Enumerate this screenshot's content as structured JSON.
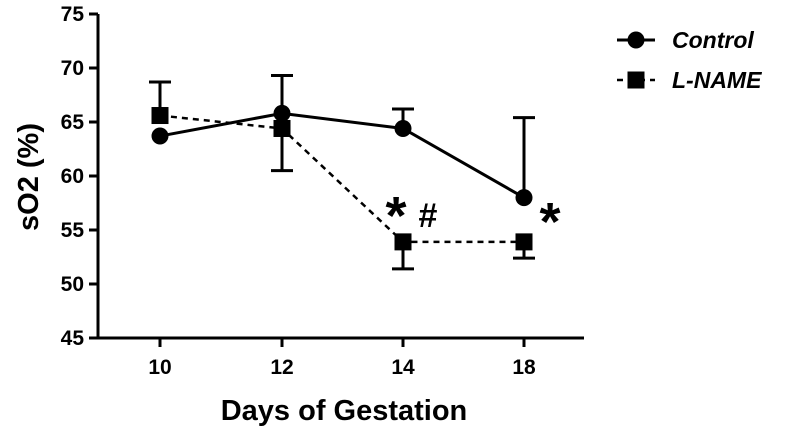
{
  "chart_data": {
    "type": "line",
    "xlabel": "Days of Gestation",
    "ylabel": "sO2 (%)",
    "categories": [
      "10",
      "12",
      "14",
      "18"
    ],
    "ylim": [
      45,
      75
    ],
    "yticks": [
      45,
      50,
      55,
      60,
      65,
      70,
      75
    ],
    "grid": false,
    "legend_position": "top-right",
    "series": [
      {
        "name": "Control",
        "marker": "circle",
        "line_style": "solid",
        "values": [
          63.7,
          65.8,
          64.4,
          58.0
        ],
        "error": [
          0,
          3.5,
          1.8,
          7.4
        ]
      },
      {
        "name": "L-NAME",
        "marker": "square",
        "line_style": "dashed",
        "values": [
          65.6,
          64.4,
          53.9,
          53.9
        ],
        "error": [
          3.1,
          3.9,
          2.5,
          1.5
        ]
      }
    ],
    "annotations": [
      {
        "text": "*",
        "category": "14",
        "size": "large"
      },
      {
        "text": "#",
        "category": "14",
        "size": "medium"
      },
      {
        "text": "*",
        "category": "18",
        "size": "large"
      }
    ]
  }
}
